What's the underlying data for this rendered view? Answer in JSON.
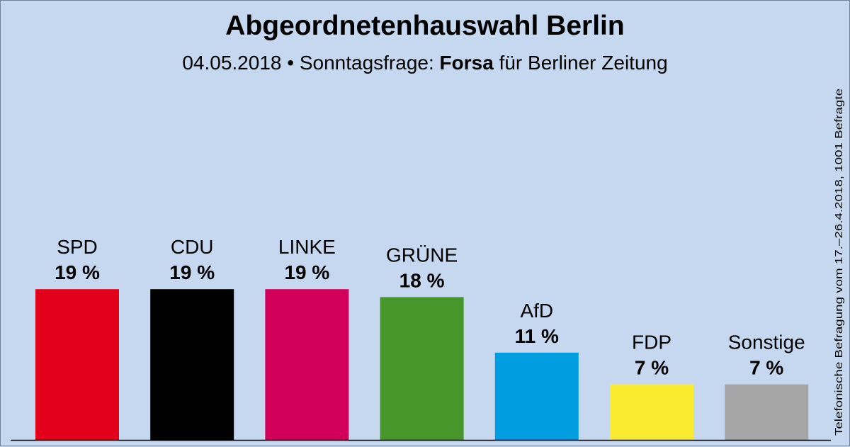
{
  "header": {
    "title": "Abgeordnetenhauswahl Berlin",
    "subtitle_date": "04.05.2018",
    "subtitle_sep": " • Sonntagsfrage: ",
    "subtitle_institute": "Forsa",
    "subtitle_client": " für Berliner Zeitung"
  },
  "side_note": "Telefonische Befragung vom 17.–26.4.2018, 1001 Befragte",
  "chart_data": {
    "type": "bar",
    "title": "Abgeordnetenhauswahl Berlin",
    "ylim": [
      0,
      30
    ],
    "grid": false,
    "categories": [
      "SPD",
      "CDU",
      "LINKE",
      "GRÜNE",
      "AfD",
      "FDP",
      "Sonstige"
    ],
    "values": [
      19,
      19,
      19,
      18,
      11,
      7,
      7
    ],
    "value_labels": [
      "19 %",
      "19 %",
      "19 %",
      "18 %",
      "11 %",
      "7 %",
      "7 %"
    ],
    "colors": [
      "#e3001b",
      "#000000",
      "#d2005a",
      "#46962b",
      "#009ee0",
      "#f9ec30",
      "#a6a6a6"
    ]
  }
}
